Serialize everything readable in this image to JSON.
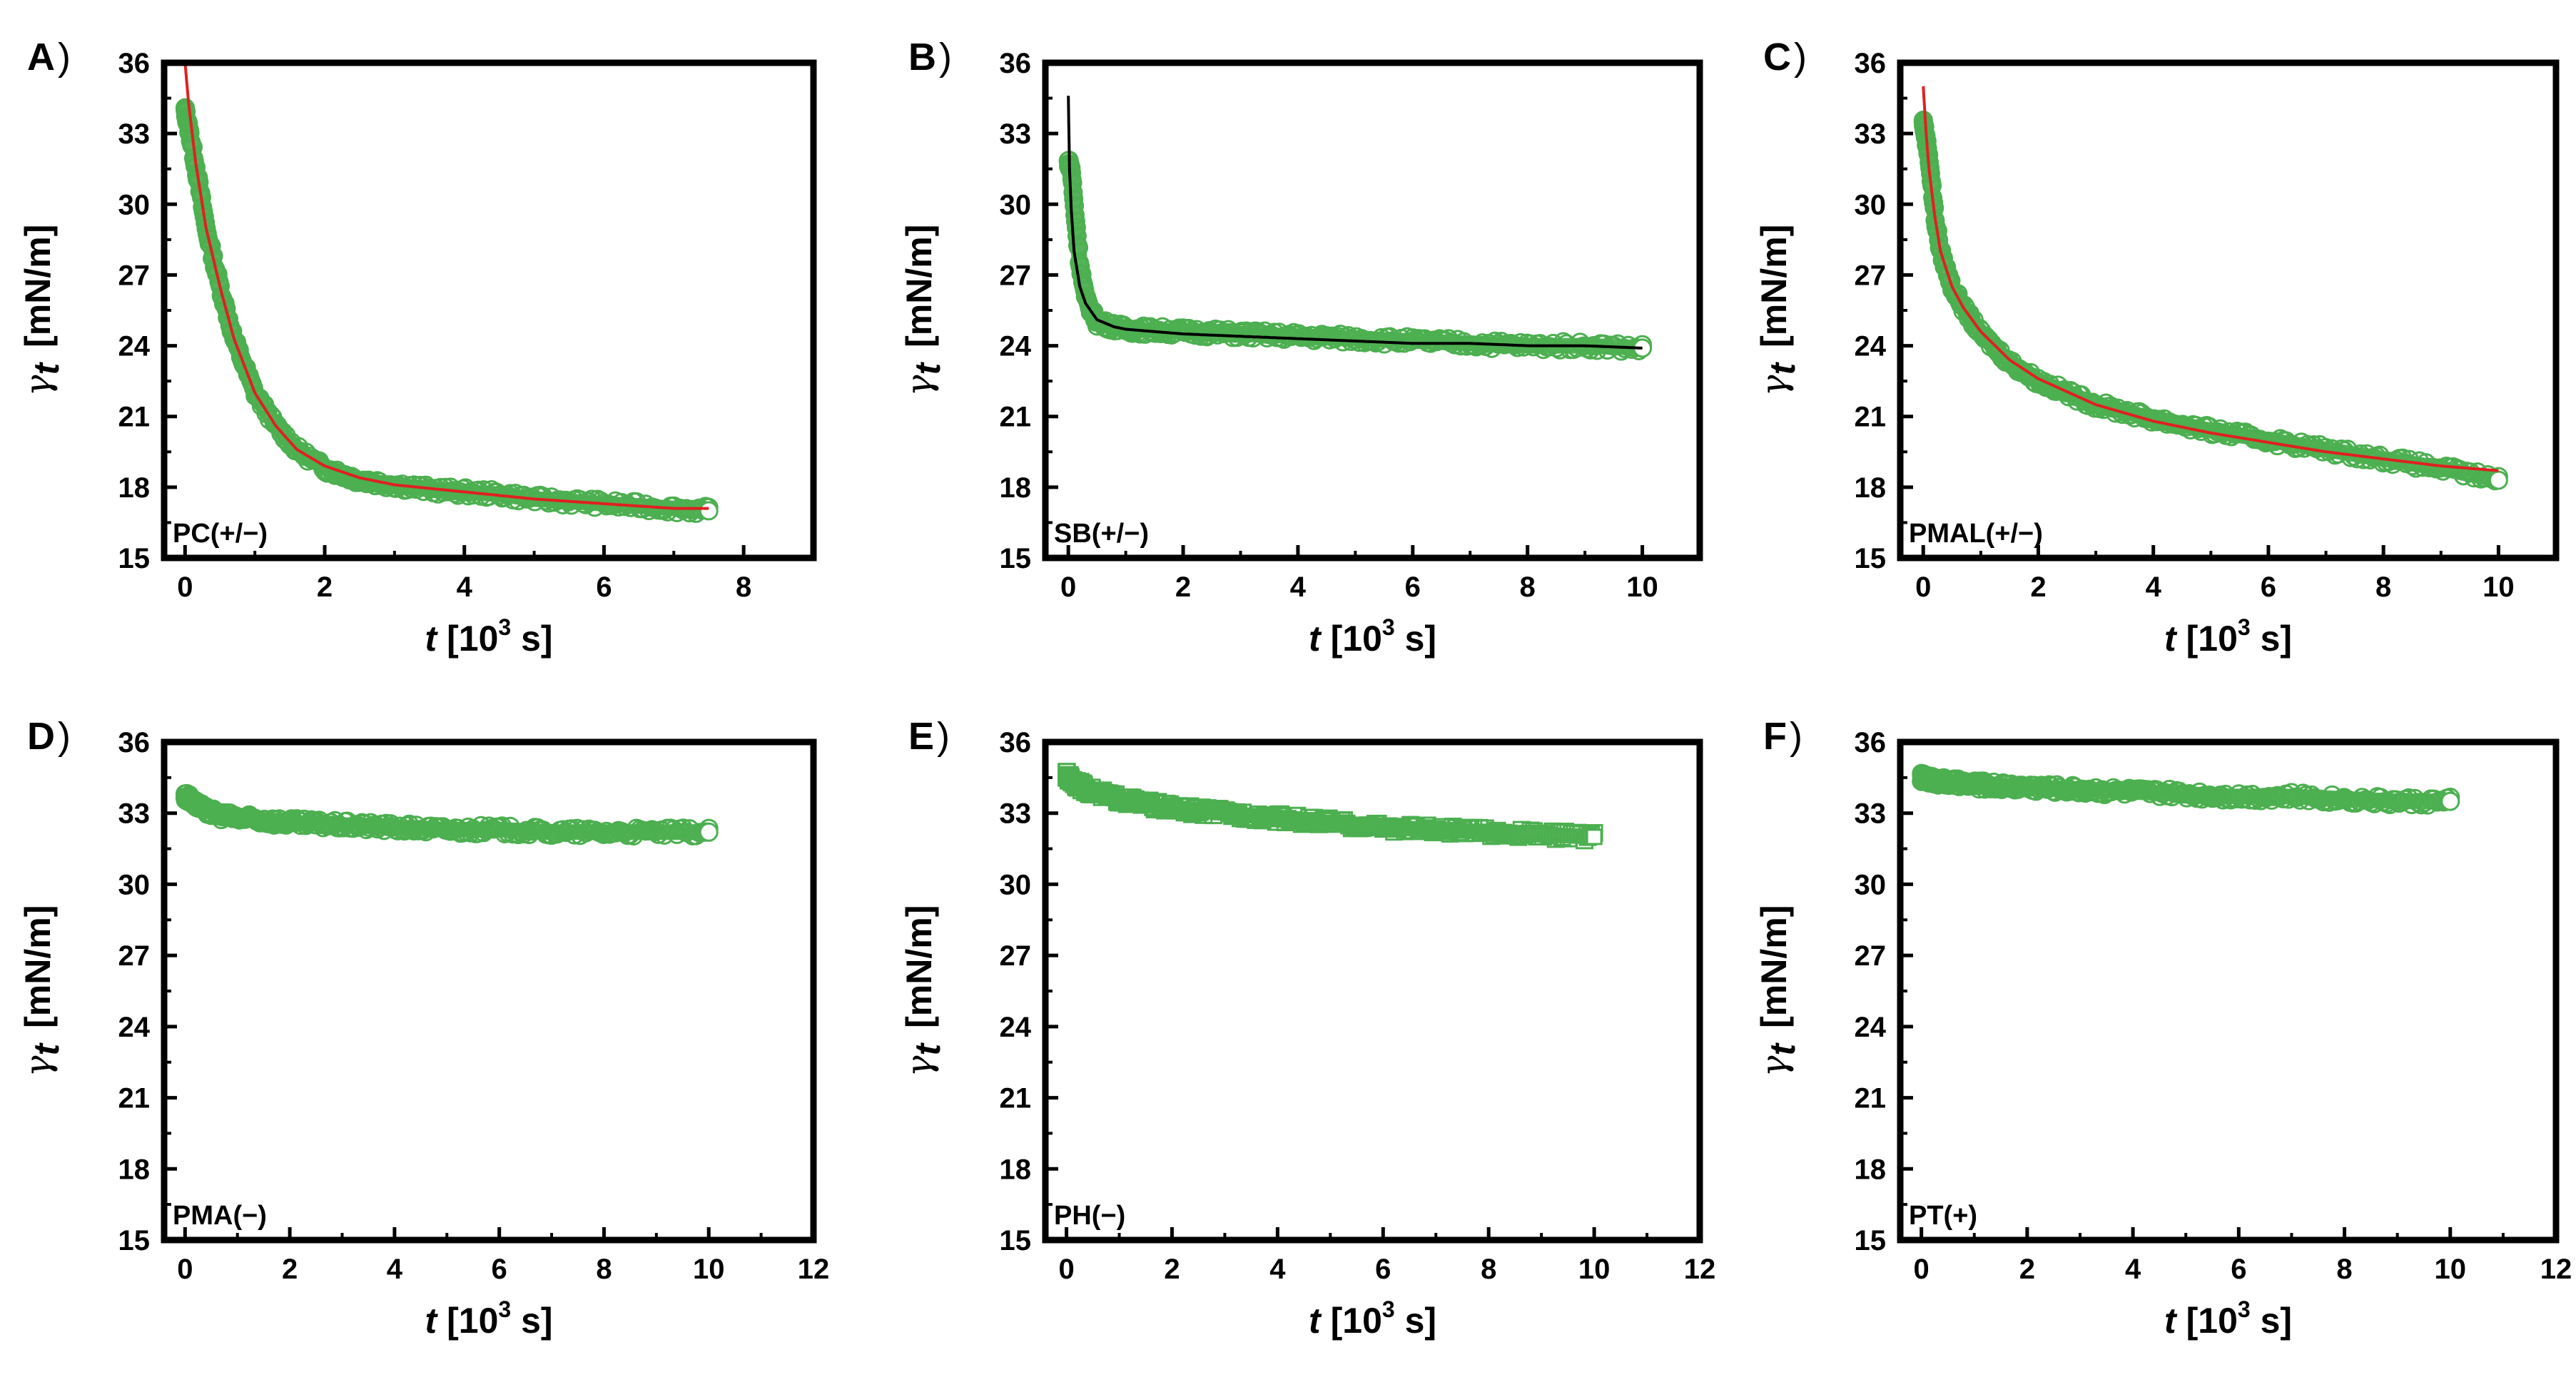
{
  "figure": {
    "caption_count": 6
  },
  "chart_data": [
    {
      "panel": "A",
      "type": "scatter",
      "sample_label": "PC(+/−)",
      "xlabel_main": "t",
      "xlabel_unit": "[10",
      "xlabel_exp": "3",
      "xlabel_end": " s]",
      "ylabel_gamma": "γ",
      "ylabel_sub": "t",
      "ylabel_unit": "[mN/m]",
      "xlim": [
        -0.3,
        9
      ],
      "ylim": [
        15,
        36
      ],
      "xticks": [
        "0",
        "2",
        "4",
        "6",
        "8"
      ],
      "yticks": [
        "15",
        "18",
        "21",
        "24",
        "27",
        "30",
        "33",
        "36"
      ],
      "marker": "circle",
      "fit_color": "#e02020",
      "data_color": "#4caf50",
      "series": [
        {
          "name": "data",
          "x": [
            0,
            0.1,
            0.2,
            0.3,
            0.5,
            0.7,
            1.0,
            1.3,
            1.6,
            2.0,
            2.5,
            3.0,
            3.5,
            4.0,
            4.5,
            5.0,
            5.5,
            6.0,
            6.5,
            7.0,
            7.5
          ],
          "y": [
            34.0,
            32.5,
            30.8,
            29.0,
            26.5,
            24.3,
            22.0,
            20.6,
            19.6,
            18.8,
            18.3,
            18.1,
            17.9,
            17.8,
            17.7,
            17.5,
            17.4,
            17.3,
            17.2,
            17.1,
            17.0
          ]
        },
        {
          "name": "fit",
          "x": [
            0,
            0.05,
            0.15,
            0.3,
            0.5,
            0.7,
            1.0,
            1.3,
            1.6,
            2.0,
            2.5,
            3.0,
            4.0,
            5.0,
            6.0,
            7.0,
            7.5
          ],
          "y": [
            36.0,
            34.3,
            31.8,
            29.0,
            26.5,
            24.3,
            22.0,
            20.6,
            19.6,
            18.9,
            18.4,
            18.1,
            17.8,
            17.5,
            17.3,
            17.1,
            17.1
          ]
        }
      ]
    },
    {
      "panel": "B",
      "type": "scatter",
      "sample_label": "SB(+/−)",
      "xlabel_main": "t",
      "xlabel_unit": "[10",
      "xlabel_exp": "3",
      "xlabel_end": " s]",
      "ylabel_gamma": "γ",
      "ylabel_sub": "t",
      "ylabel_unit": "[mN/m]",
      "xlim": [
        -0.4,
        11
      ],
      "ylim": [
        15,
        36
      ],
      "xticks": [
        "0",
        "2",
        "4",
        "6",
        "8",
        "10"
      ],
      "yticks": [
        "15",
        "18",
        "21",
        "24",
        "27",
        "30",
        "33",
        "36"
      ],
      "marker": "circle",
      "fit_color": "#000000",
      "data_color": "#4caf50",
      "series": [
        {
          "name": "data",
          "x": [
            0,
            0.05,
            0.1,
            0.2,
            0.3,
            0.5,
            0.8,
            1.0,
            2.0,
            3.0,
            4.0,
            5.0,
            6.0,
            7.0,
            8.0,
            9.0,
            10.0
          ],
          "y": [
            31.8,
            31.5,
            30.0,
            27.5,
            26.0,
            25.0,
            24.8,
            24.7,
            24.6,
            24.5,
            24.4,
            24.3,
            24.2,
            24.1,
            24.0,
            24.0,
            23.9
          ]
        },
        {
          "name": "fit",
          "x": [
            0,
            0.02,
            0.05,
            0.1,
            0.2,
            0.3,
            0.5,
            0.8,
            1.0,
            2.0,
            3.0,
            4.0,
            5.0,
            6.0,
            7.0,
            8.0,
            9.0,
            10.0
          ],
          "y": [
            34.6,
            31.5,
            29.8,
            28.0,
            26.5,
            25.8,
            25.1,
            24.8,
            24.7,
            24.5,
            24.4,
            24.3,
            24.2,
            24.1,
            24.1,
            24.0,
            24.0,
            23.9
          ]
        }
      ]
    },
    {
      "panel": "C",
      "type": "scatter",
      "sample_label": "PMAL(+/−)",
      "xlabel_main": "t",
      "xlabel_unit": "[10",
      "xlabel_exp": "3",
      "xlabel_end": " s]",
      "ylabel_gamma": "γ",
      "ylabel_sub": "t",
      "ylabel_unit": "[mN/m]",
      "xlim": [
        -0.4,
        11
      ],
      "ylim": [
        15,
        36
      ],
      "xticks": [
        "0",
        "2",
        "4",
        "6",
        "8",
        "10"
      ],
      "yticks": [
        "15",
        "18",
        "21",
        "24",
        "27",
        "30",
        "33",
        "36"
      ],
      "marker": "circle",
      "fit_color": "#e02020",
      "data_color": "#4caf50",
      "series": [
        {
          "name": "data",
          "x": [
            0,
            0.1,
            0.2,
            0.3,
            0.5,
            0.7,
            1.0,
            1.5,
            2.0,
            3.0,
            4.0,
            5.0,
            6.0,
            7.0,
            8.0,
            9.0,
            10.0
          ],
          "y": [
            33.5,
            32.0,
            29.5,
            28.0,
            26.5,
            25.6,
            24.5,
            23.3,
            22.5,
            21.5,
            20.9,
            20.4,
            20.0,
            19.6,
            19.2,
            18.8,
            18.3
          ]
        },
        {
          "name": "fit",
          "x": [
            0,
            0.05,
            0.1,
            0.2,
            0.3,
            0.5,
            0.7,
            1.0,
            1.5,
            2.0,
            3.0,
            4.0,
            5.0,
            6.0,
            7.0,
            8.0,
            9.0,
            10.0
          ],
          "y": [
            35.0,
            33.0,
            31.5,
            29.5,
            28.0,
            26.5,
            25.6,
            24.6,
            23.4,
            22.6,
            21.5,
            20.8,
            20.3,
            19.9,
            19.5,
            19.2,
            18.9,
            18.7
          ]
        }
      ]
    },
    {
      "panel": "D",
      "type": "scatter",
      "sample_label": "PMA(−)",
      "xlabel_main": "t",
      "xlabel_unit": "[10",
      "xlabel_exp": "3",
      "xlabel_end": " s]",
      "ylabel_gamma": "γ",
      "ylabel_sub": "t",
      "ylabel_unit": "[mN/m]",
      "xlim": [
        -0.4,
        12
      ],
      "ylim": [
        15,
        36
      ],
      "xticks": [
        "0",
        "2",
        "4",
        "6",
        "8",
        "10",
        "12"
      ],
      "yticks": [
        "15",
        "18",
        "21",
        "24",
        "27",
        "30",
        "33",
        "36"
      ],
      "marker": "circle",
      "fit_color": "",
      "data_color": "#4caf50",
      "series": [
        {
          "name": "data",
          "x": [
            0,
            0.1,
            0.2,
            0.4,
            0.7,
            1.0,
            1.5,
            2.0,
            3.0,
            4.0,
            5.0,
            6.0,
            7.0,
            8.0,
            9.0,
            10.0
          ],
          "y": [
            33.7,
            33.6,
            33.4,
            33.1,
            32.9,
            32.8,
            32.7,
            32.6,
            32.5,
            32.4,
            32.3,
            32.3,
            32.2,
            32.2,
            32.2,
            32.2
          ]
        }
      ]
    },
    {
      "panel": "E",
      "type": "scatter",
      "sample_label": "PH(−)",
      "xlabel_main": "t",
      "xlabel_unit": "[10",
      "xlabel_exp": "3",
      "xlabel_end": " s]",
      "ylabel_gamma": "γ",
      "ylabel_sub": "t",
      "ylabel_unit": "[mN/m]",
      "xlim": [
        -0.4,
        12
      ],
      "ylim": [
        15,
        36
      ],
      "xticks": [
        "0",
        "2",
        "4",
        "6",
        "8",
        "10",
        "12"
      ],
      "yticks": [
        "15",
        "18",
        "21",
        "24",
        "27",
        "30",
        "33",
        "36"
      ],
      "marker": "square",
      "fit_color": "",
      "data_color": "#4caf50",
      "series": [
        {
          "name": "data",
          "x": [
            0,
            0.1,
            0.3,
            0.5,
            1.0,
            1.5,
            2.0,
            3.0,
            4.0,
            5.0,
            6.0,
            7.0,
            8.0,
            9.0,
            10.0
          ],
          "y": [
            34.6,
            34.4,
            34.1,
            33.9,
            33.6,
            33.4,
            33.2,
            33.0,
            32.8,
            32.6,
            32.4,
            32.3,
            32.2,
            32.1,
            32.0
          ]
        }
      ]
    },
    {
      "panel": "F",
      "type": "scatter",
      "sample_label": "PT(+)",
      "xlabel_main": "t",
      "xlabel_unit": "[10",
      "xlabel_exp": "3",
      "xlabel_end": " s]",
      "ylabel_gamma": "γ",
      "ylabel_sub": "t",
      "ylabel_unit": "[mN/m]",
      "xlim": [
        -0.4,
        12
      ],
      "ylim": [
        15,
        36
      ],
      "xticks": [
        "0",
        "2",
        "4",
        "6",
        "8",
        "10",
        "12"
      ],
      "yticks": [
        "15",
        "18",
        "21",
        "24",
        "27",
        "30",
        "33",
        "36"
      ],
      "marker": "circle",
      "fit_color": "",
      "data_color": "#4caf50",
      "series": [
        {
          "name": "data",
          "x": [
            0,
            0.2,
            0.5,
            1.0,
            2.0,
            3.0,
            4.0,
            5.0,
            6.0,
            7.0,
            8.0,
            9.0,
            10.0
          ],
          "y": [
            34.5,
            34.4,
            34.3,
            34.2,
            34.1,
            34.0,
            33.9,
            33.8,
            33.7,
            33.7,
            33.6,
            33.5,
            33.5
          ]
        }
      ]
    }
  ]
}
